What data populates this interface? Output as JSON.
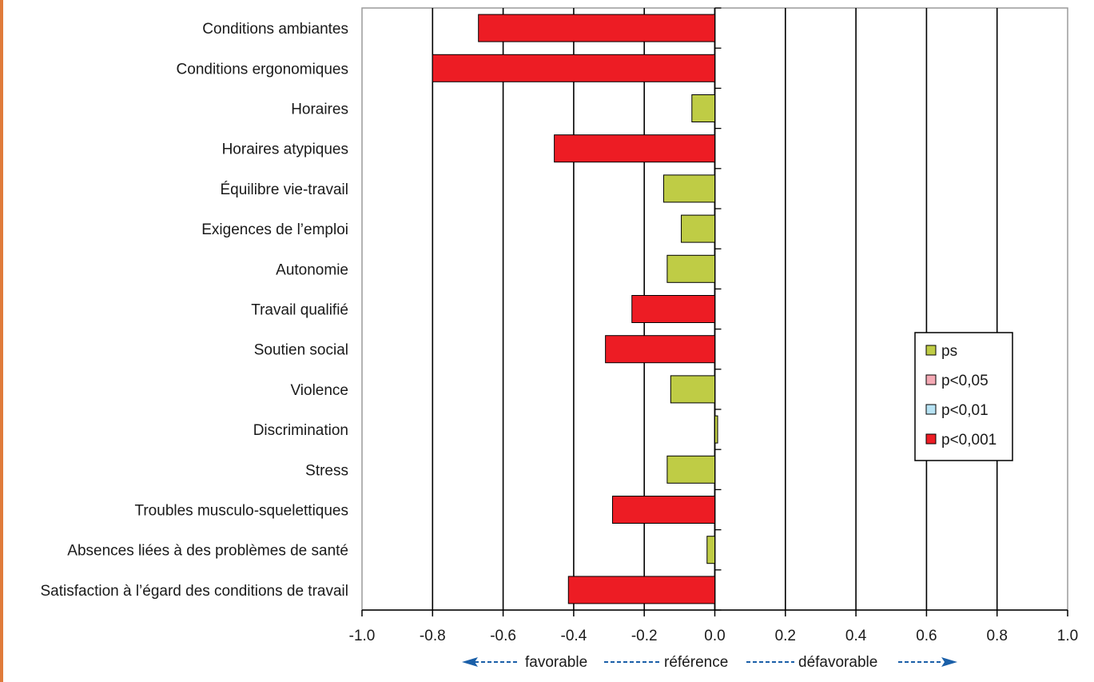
{
  "chart_data": {
    "type": "bar",
    "orientation": "horizontal",
    "categories": [
      "Conditions ambiantes",
      "Conditions ergonomiques",
      "Horaires",
      "Horaires atypiques",
      "Équilibre vie-travail",
      "Exigences de l’emploi",
      "Autonomie",
      "Travail qualifié",
      "Soutien social",
      "Violence",
      "Discrimination",
      "Stress",
      "Troubles musculo-squelettiques",
      "Absences liées à des problèmes de santé",
      "Satisfaction à l’égard des conditions de travail"
    ],
    "values": [
      -0.67,
      -0.8,
      -0.065,
      -0.455,
      -0.145,
      -0.095,
      -0.135,
      -0.235,
      -0.31,
      -0.125,
      0.008,
      -0.135,
      -0.29,
      -0.022,
      -0.415
    ],
    "significance": [
      "p<0,001",
      "p<0,001",
      "ps",
      "p<0,001",
      "ps",
      "ps",
      "ps",
      "p<0,001",
      "p<0,001",
      "ps",
      "ps",
      "ps",
      "p<0,001",
      "ps",
      "p<0,001"
    ],
    "xlim": [
      -1.0,
      1.0
    ],
    "xticks": [
      "-1.0",
      "-0.8",
      "-0.6",
      "-0.4",
      "-0.2",
      "0.0",
      "0.2",
      "0.4",
      "0.6",
      "0.8",
      "1.0"
    ],
    "xtick_values": [
      -1.0,
      -0.8,
      -0.6,
      -0.4,
      -0.2,
      0.0,
      0.2,
      0.4,
      0.6,
      0.8,
      1.0
    ],
    "grid": true,
    "legend_position": "right",
    "legend": [
      {
        "label": "ps",
        "color": "#bfcc45"
      },
      {
        "label": "p<0,05",
        "color": "#f4a9b4"
      },
      {
        "label": "p<0,01",
        "color": "#b7e3f4"
      },
      {
        "label": "p<0,001",
        "color": "#ed1c24"
      }
    ],
    "direction_labels": {
      "left": "favorable",
      "center": "référence",
      "right": "défavorable"
    },
    "colors": {
      "ps": "#bfcc45",
      "p<0,05": "#f4a9b4",
      "p<0,01": "#b7e3f4",
      "p<0,001": "#ed1c24",
      "arrow": "#1a5fa8",
      "accent_edge": "#e07b3a"
    }
  }
}
